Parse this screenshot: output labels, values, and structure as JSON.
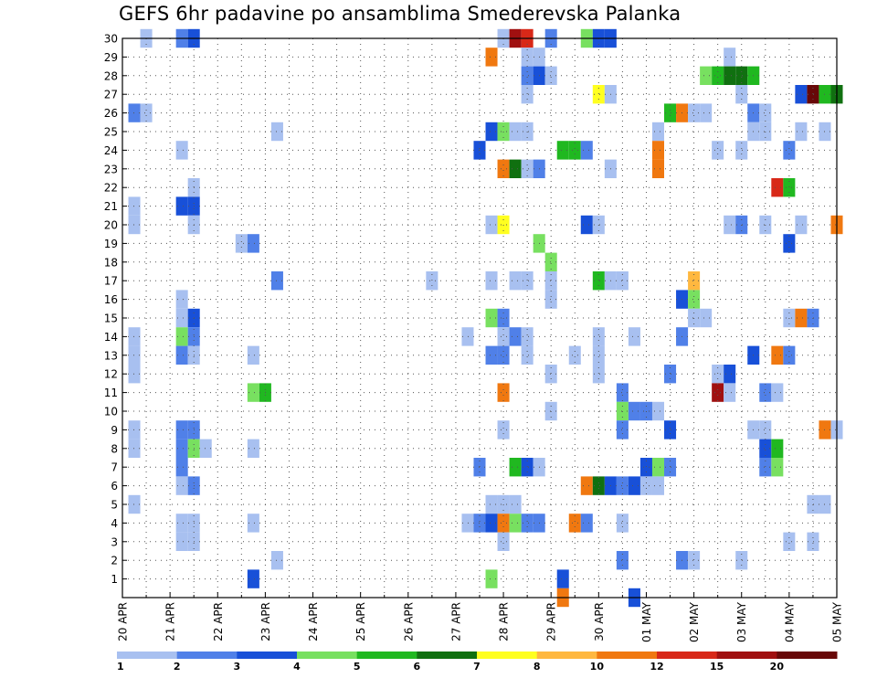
{
  "title": "GEFS 6hr padavine po ansamblima Smederevska Palanka",
  "chart_data": {
    "type": "heatmap",
    "title": "GEFS 6hr padavine po ansamblima Smederevska Palanka",
    "xlabel": "",
    "ylabel": "",
    "x_ticks": [
      "20 APR",
      "21 APR",
      "22 APR",
      "23 APR",
      "24 APR",
      "25 APR",
      "26 APR",
      "27 APR",
      "28 APR",
      "29 APR",
      "30 APR",
      "01 MAY",
      "02 MAY",
      "03 MAY",
      "04 MAY",
      "05 MAY"
    ],
    "y_ticks": [
      1,
      2,
      3,
      4,
      5,
      6,
      7,
      8,
      9,
      10,
      11,
      12,
      13,
      14,
      15,
      16,
      17,
      18,
      19,
      20,
      21,
      22,
      23,
      24,
      25,
      26,
      27,
      28,
      29,
      30
    ],
    "xlim_steps": [
      0,
      60
    ],
    "ylim": [
      0,
      30
    ],
    "x_step_hours": 6,
    "grid": true,
    "legend": {
      "placement": "bottom",
      "labels": [
        "1",
        "2",
        "3",
        "4",
        "5",
        "6",
        "7",
        "8",
        "10",
        "12",
        "15",
        "20"
      ],
      "colors": [
        "#a8c0f0",
        "#5080e8",
        "#1850d8",
        "#78e060",
        "#20b820",
        "#107010",
        "#ffff20",
        "#ffb840",
        "#f07810",
        "#d82818",
        "#a01010",
        "#680808"
      ]
    },
    "cells": [
      [
        2,
        30,
        0
      ],
      [
        5,
        30,
        1
      ],
      [
        6,
        30,
        2
      ],
      [
        32,
        30,
        0
      ],
      [
        33,
        30,
        10
      ],
      [
        34,
        30,
        9
      ],
      [
        36,
        30,
        1
      ],
      [
        39,
        30,
        3
      ],
      [
        40,
        30,
        2
      ],
      [
        41,
        30,
        2
      ],
      [
        31,
        29,
        8
      ],
      [
        34,
        29,
        0
      ],
      [
        35,
        29,
        0
      ],
      [
        51,
        29,
        0
      ],
      [
        34,
        28,
        1
      ],
      [
        35,
        28,
        2
      ],
      [
        36,
        28,
        0
      ],
      [
        49,
        28,
        3
      ],
      [
        50,
        28,
        4
      ],
      [
        51,
        28,
        5
      ],
      [
        52,
        28,
        5
      ],
      [
        53,
        28,
        4
      ],
      [
        34,
        27,
        0
      ],
      [
        40,
        27,
        6
      ],
      [
        41,
        27,
        0
      ],
      [
        52,
        27,
        0
      ],
      [
        57,
        27,
        2
      ],
      [
        58,
        27,
        11
      ],
      [
        59,
        27,
        4
      ],
      [
        60,
        27,
        5
      ],
      [
        1,
        26,
        1
      ],
      [
        2,
        26,
        0
      ],
      [
        46,
        26,
        4
      ],
      [
        47,
        26,
        8
      ],
      [
        48,
        26,
        0
      ],
      [
        49,
        26,
        0
      ],
      [
        53,
        26,
        1
      ],
      [
        54,
        26,
        0
      ],
      [
        13,
        25,
        0
      ],
      [
        31,
        25,
        2
      ],
      [
        32,
        25,
        3
      ],
      [
        33,
        25,
        0
      ],
      [
        34,
        25,
        0
      ],
      [
        45,
        25,
        0
      ],
      [
        53,
        25,
        0
      ],
      [
        54,
        25,
        0
      ],
      [
        57,
        25,
        0
      ],
      [
        59,
        25,
        0
      ],
      [
        5,
        24,
        0
      ],
      [
        30,
        24,
        2
      ],
      [
        37,
        24,
        4
      ],
      [
        38,
        24,
        4
      ],
      [
        39,
        24,
        1
      ],
      [
        45,
        24,
        8
      ],
      [
        50,
        24,
        0
      ],
      [
        52,
        24,
        0
      ],
      [
        56,
        24,
        1
      ],
      [
        32,
        23,
        8
      ],
      [
        33,
        23,
        5
      ],
      [
        34,
        23,
        0
      ],
      [
        35,
        23,
        1
      ],
      [
        41,
        23,
        0
      ],
      [
        45,
        23,
        8
      ],
      [
        6,
        22,
        0
      ],
      [
        55,
        22,
        9
      ],
      [
        56,
        22,
        4
      ],
      [
        1,
        21,
        0
      ],
      [
        5,
        21,
        2
      ],
      [
        6,
        21,
        2
      ],
      [
        1,
        20,
        0
      ],
      [
        6,
        20,
        0
      ],
      [
        31,
        20,
        0
      ],
      [
        32,
        20,
        6
      ],
      [
        39,
        20,
        2
      ],
      [
        40,
        20,
        0
      ],
      [
        51,
        20,
        0
      ],
      [
        52,
        20,
        1
      ],
      [
        54,
        20,
        0
      ],
      [
        57,
        20,
        0
      ],
      [
        60,
        20,
        8
      ],
      [
        10,
        19,
        0
      ],
      [
        11,
        19,
        1
      ],
      [
        35,
        19,
        3
      ],
      [
        56,
        19,
        2
      ],
      [
        36,
        18,
        3
      ],
      [
        13,
        17,
        1
      ],
      [
        26,
        17,
        0
      ],
      [
        31,
        17,
        0
      ],
      [
        33,
        17,
        0
      ],
      [
        34,
        17,
        0
      ],
      [
        36,
        17,
        0
      ],
      [
        40,
        17,
        4
      ],
      [
        41,
        17,
        0
      ],
      [
        42,
        17,
        0
      ],
      [
        48,
        17,
        7
      ],
      [
        5,
        16,
        0
      ],
      [
        36,
        16,
        0
      ],
      [
        47,
        16,
        2
      ],
      [
        48,
        16,
        3
      ],
      [
        5,
        15,
        0
      ],
      [
        6,
        15,
        2
      ],
      [
        31,
        15,
        3
      ],
      [
        32,
        15,
        1
      ],
      [
        48,
        15,
        0
      ],
      [
        49,
        15,
        0
      ],
      [
        56,
        15,
        0
      ],
      [
        57,
        15,
        8
      ],
      [
        58,
        15,
        1
      ],
      [
        1,
        14,
        0
      ],
      [
        5,
        14,
        3
      ],
      [
        6,
        14,
        1
      ],
      [
        29,
        14,
        0
      ],
      [
        32,
        14,
        0
      ],
      [
        33,
        14,
        1
      ],
      [
        34,
        14,
        0
      ],
      [
        40,
        14,
        0
      ],
      [
        43,
        14,
        0
      ],
      [
        47,
        14,
        1
      ],
      [
        1,
        13,
        0
      ],
      [
        5,
        13,
        1
      ],
      [
        6,
        13,
        0
      ],
      [
        11,
        13,
        0
      ],
      [
        31,
        13,
        1
      ],
      [
        32,
        13,
        1
      ],
      [
        34,
        13,
        0
      ],
      [
        38,
        13,
        0
      ],
      [
        40,
        13,
        0
      ],
      [
        53,
        13,
        2
      ],
      [
        55,
        13,
        8
      ],
      [
        56,
        13,
        1
      ],
      [
        1,
        12,
        0
      ],
      [
        36,
        12,
        0
      ],
      [
        40,
        12,
        0
      ],
      [
        46,
        12,
        1
      ],
      [
        50,
        12,
        0
      ],
      [
        51,
        12,
        2
      ],
      [
        11,
        11,
        3
      ],
      [
        12,
        11,
        4
      ],
      [
        32,
        11,
        8
      ],
      [
        42,
        11,
        1
      ],
      [
        50,
        11,
        10
      ],
      [
        51,
        11,
        0
      ],
      [
        54,
        11,
        1
      ],
      [
        55,
        11,
        0
      ],
      [
        36,
        10,
        0
      ],
      [
        42,
        10,
        3
      ],
      [
        43,
        10,
        1
      ],
      [
        44,
        10,
        1
      ],
      [
        45,
        10,
        0
      ],
      [
        1,
        9,
        0
      ],
      [
        5,
        9,
        1
      ],
      [
        6,
        9,
        1
      ],
      [
        32,
        9,
        0
      ],
      [
        42,
        9,
        1
      ],
      [
        46,
        9,
        2
      ],
      [
        53,
        9,
        0
      ],
      [
        54,
        9,
        0
      ],
      [
        59,
        9,
        8
      ],
      [
        60,
        9,
        0
      ],
      [
        1,
        8,
        0
      ],
      [
        5,
        8,
        1
      ],
      [
        6,
        8,
        3
      ],
      [
        7,
        8,
        0
      ],
      [
        11,
        8,
        0
      ],
      [
        54,
        8,
        2
      ],
      [
        55,
        8,
        4
      ],
      [
        5,
        7,
        1
      ],
      [
        30,
        7,
        1
      ],
      [
        33,
        7,
        4
      ],
      [
        34,
        7,
        2
      ],
      [
        35,
        7,
        0
      ],
      [
        44,
        7,
        2
      ],
      [
        45,
        7,
        3
      ],
      [
        46,
        7,
        1
      ],
      [
        54,
        7,
        1
      ],
      [
        55,
        7,
        3
      ],
      [
        5,
        6,
        0
      ],
      [
        6,
        6,
        1
      ],
      [
        39,
        6,
        8
      ],
      [
        40,
        6,
        5
      ],
      [
        41,
        6,
        2
      ],
      [
        42,
        6,
        1
      ],
      [
        43,
        6,
        2
      ],
      [
        44,
        6,
        0
      ],
      [
        45,
        6,
        0
      ],
      [
        1,
        5,
        0
      ],
      [
        31,
        5,
        0
      ],
      [
        32,
        5,
        0
      ],
      [
        33,
        5,
        0
      ],
      [
        58,
        5,
        0
      ],
      [
        59,
        5,
        0
      ],
      [
        5,
        4,
        0
      ],
      [
        6,
        4,
        0
      ],
      [
        11,
        4,
        0
      ],
      [
        29,
        4,
        0
      ],
      [
        30,
        4,
        1
      ],
      [
        31,
        4,
        2
      ],
      [
        32,
        4,
        8
      ],
      [
        33,
        4,
        3
      ],
      [
        34,
        4,
        1
      ],
      [
        35,
        4,
        1
      ],
      [
        38,
        4,
        8
      ],
      [
        39,
        4,
        1
      ],
      [
        42,
        4,
        0
      ],
      [
        5,
        3,
        0
      ],
      [
        6,
        3,
        0
      ],
      [
        32,
        3,
        0
      ],
      [
        56,
        3,
        0
      ],
      [
        58,
        3,
        0
      ],
      [
        13,
        2,
        0
      ],
      [
        42,
        2,
        1
      ],
      [
        47,
        2,
        1
      ],
      [
        48,
        2,
        0
      ],
      [
        52,
        2,
        0
      ],
      [
        11,
        1,
        2
      ],
      [
        31,
        1,
        3
      ],
      [
        37,
        1,
        2
      ],
      [
        37,
        0,
        8
      ],
      [
        43,
        0,
        2
      ]
    ]
  }
}
